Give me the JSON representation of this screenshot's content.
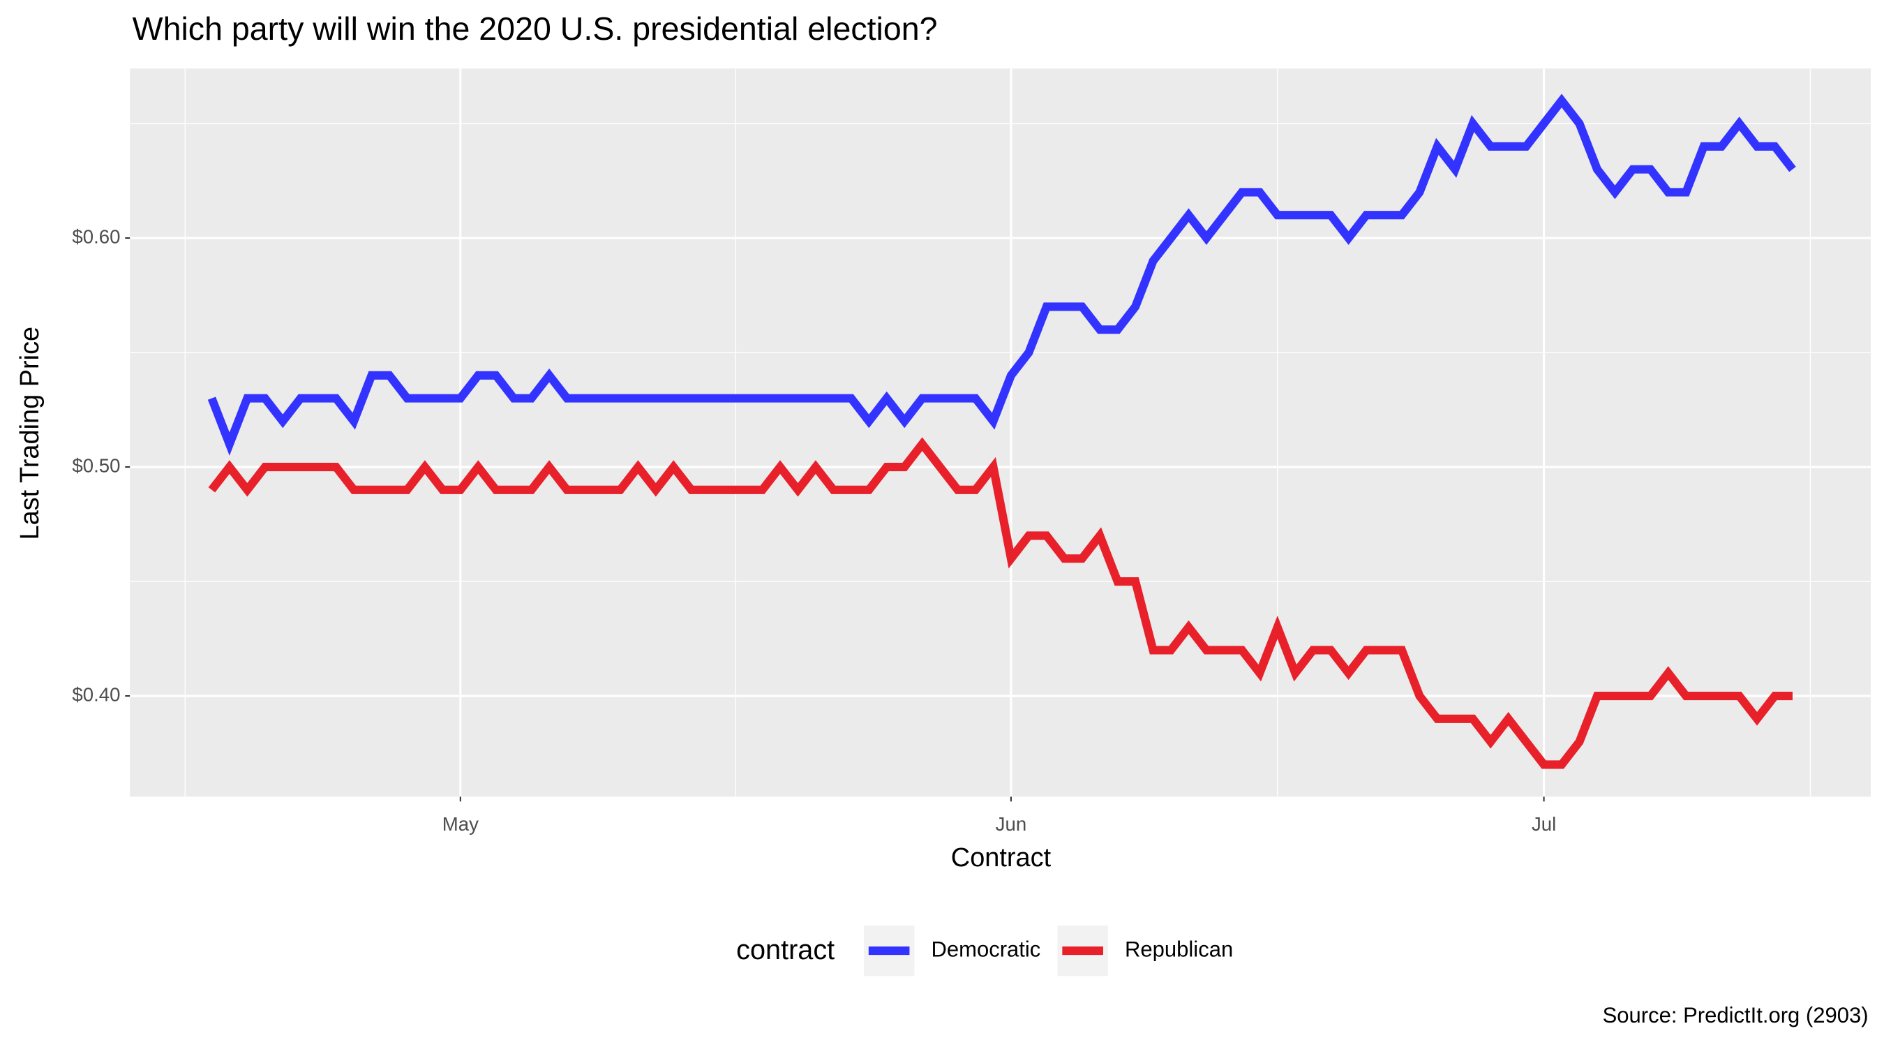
{
  "chart_data": {
    "type": "line",
    "title": "Which party will win the 2020 U.S. presidential election?",
    "xlabel": "Contract",
    "ylabel": "Last Trading Price",
    "caption": "Source: PredictIt.org (2903)",
    "legend_title": "contract",
    "legend": "bottom",
    "grid": true,
    "categories": [
      null,
      null,
      null,
      null,
      null,
      null,
      null,
      null,
      null,
      null,
      null,
      null,
      null,
      null,
      "May",
      null,
      null,
      null,
      null,
      null,
      null,
      null,
      null,
      null,
      null,
      null,
      null,
      null,
      null,
      null,
      null,
      null,
      null,
      null,
      null,
      null,
      null,
      null,
      null,
      null,
      null,
      null,
      null,
      null,
      null,
      "Jun",
      null,
      null,
      null,
      null,
      null,
      null,
      null,
      null,
      null,
      null,
      null,
      null,
      null,
      null,
      null,
      null,
      null,
      null,
      null,
      null,
      null,
      null,
      null,
      null,
      null,
      null,
      null,
      null,
      null,
      "Jul",
      null,
      null,
      null,
      null,
      null,
      null,
      null,
      null,
      null,
      null,
      null,
      null,
      null,
      null
    ],
    "ylim": [
      0.356,
      0.674
    ],
    "yticks": [
      {
        "value": 0.4,
        "label": "$0.40"
      },
      {
        "value": 0.5,
        "label": "$0.50"
      },
      {
        "value": 0.6,
        "label": "$0.60"
      }
    ],
    "series": [
      {
        "name": "Democratic",
        "color": "#3333ff",
        "values": [
          0.53,
          0.51,
          0.53,
          0.53,
          0.52,
          0.53,
          0.53,
          0.53,
          0.52,
          0.54,
          0.54,
          0.53,
          0.53,
          0.53,
          0.53,
          0.54,
          0.54,
          0.53,
          0.53,
          0.54,
          0.53,
          0.53,
          0.53,
          0.53,
          0.53,
          0.53,
          0.53,
          0.53,
          0.53,
          0.53,
          0.53,
          0.53,
          0.53,
          0.53,
          0.53,
          0.53,
          0.53,
          0.52,
          0.53,
          0.52,
          0.53,
          0.53,
          0.53,
          0.53,
          0.52,
          0.54,
          0.55,
          0.57,
          0.57,
          0.57,
          0.56,
          0.56,
          0.57,
          0.59,
          0.6,
          0.61,
          0.6,
          0.61,
          0.62,
          0.62,
          0.61,
          0.61,
          0.61,
          0.61,
          0.6,
          0.61,
          0.61,
          0.61,
          0.62,
          0.64,
          0.63,
          0.65,
          0.64,
          0.64,
          0.64,
          0.65,
          0.66,
          0.65,
          0.63,
          0.62,
          0.63,
          0.63,
          0.62,
          0.62,
          0.64,
          0.64,
          0.65,
          0.64,
          0.64,
          0.63
        ]
      },
      {
        "name": "Republican",
        "color": "#e8202a",
        "values": [
          0.49,
          0.5,
          0.49,
          0.5,
          0.5,
          0.5,
          0.5,
          0.5,
          0.49,
          0.49,
          0.49,
          0.49,
          0.5,
          0.49,
          0.49,
          0.5,
          0.49,
          0.49,
          0.49,
          0.5,
          0.49,
          0.49,
          0.49,
          0.49,
          0.5,
          0.49,
          0.5,
          0.49,
          0.49,
          0.49,
          0.49,
          0.49,
          0.5,
          0.49,
          0.5,
          0.49,
          0.49,
          0.49,
          0.5,
          0.5,
          0.51,
          0.5,
          0.49,
          0.49,
          0.5,
          0.46,
          0.47,
          0.47,
          0.46,
          0.46,
          0.47,
          0.45,
          0.45,
          0.42,
          0.42,
          0.43,
          0.42,
          0.42,
          0.42,
          0.41,
          0.43,
          0.41,
          0.42,
          0.42,
          0.41,
          0.42,
          0.42,
          0.42,
          0.4,
          0.39,
          0.39,
          0.39,
          0.38,
          0.39,
          0.38,
          0.37,
          0.37,
          0.38,
          0.4,
          0.4,
          0.4,
          0.4,
          0.41,
          0.4,
          0.4,
          0.4,
          0.4,
          0.39,
          0.4,
          0.4
        ]
      }
    ]
  }
}
